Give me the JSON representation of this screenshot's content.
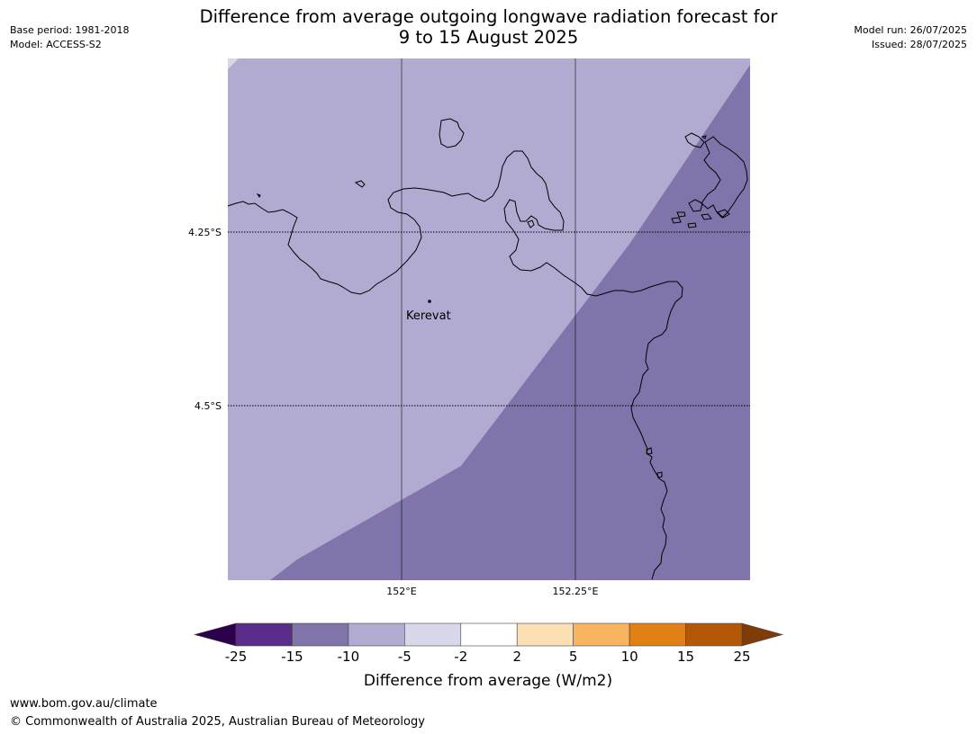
{
  "header": {
    "base_period": "Base period: 1981-2018",
    "model": "Model: ACCESS-S2",
    "model_run": "Model run: 26/07/2025",
    "issued": "Issued: 28/07/2025",
    "title_line1": "Difference from average outgoing longwave radiation forecast for",
    "title_line2": "9 to 15 August 2025"
  },
  "map": {
    "lat_labels": [
      "4.25°S",
      "4.5°S"
    ],
    "lon_labels": [
      "152°E",
      "152.25°E"
    ],
    "place": {
      "name": "Kerevat"
    },
    "colors": {
      "light_band": "#b1aad1",
      "dark_band": "#8074ab",
      "coast": "#000000",
      "grid": "#000000"
    }
  },
  "legend": {
    "title": "Difference from average (W/m2)",
    "ticks": [
      "-25",
      "-15",
      "-10",
      "-5",
      "-2",
      "2",
      "5",
      "10",
      "15",
      "25"
    ],
    "colors": [
      "#5b2c8c",
      "#8074ab",
      "#b1aad1",
      "#d9d8ea",
      "#ffffff",
      "#fddfb4",
      "#f9b460",
      "#e08015",
      "#b35807"
    ],
    "under_color": "#2d004b",
    "over_color": "#7f3b08"
  },
  "footer": {
    "url": "www.bom.gov.au/climate",
    "copyright": "© Commonwealth of Australia 2025, Australian Bureau of Meteorology"
  }
}
